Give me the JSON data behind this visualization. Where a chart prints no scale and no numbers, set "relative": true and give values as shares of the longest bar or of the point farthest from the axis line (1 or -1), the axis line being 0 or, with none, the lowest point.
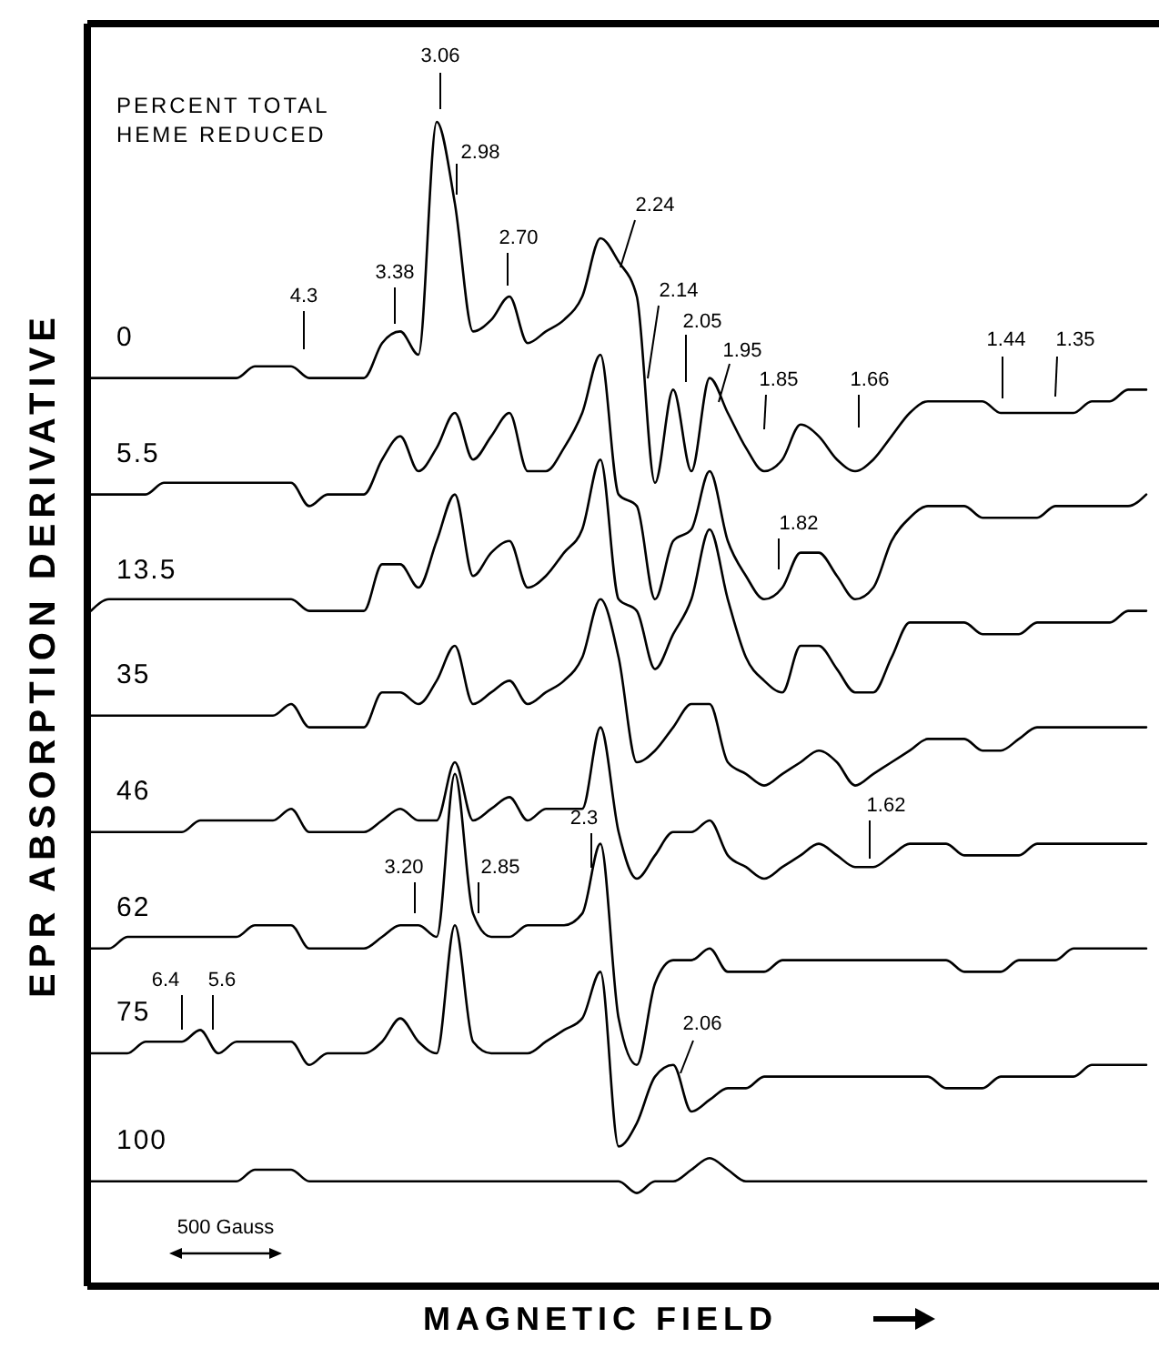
{
  "chart_data": {
    "type": "line",
    "relative": true,
    "xlabel": "MAGNETIC FIELD",
    "ylabel": "EPR ABSORPTION DERIVATIVE",
    "legend_title": "PERCENT TOTAL HEME REDUCED",
    "categories": [
      null,
      null,
      null,
      null,
      null,
      null,
      null,
      null,
      null,
      null,
      null,
      null,
      null,
      null,
      null,
      null,
      null,
      null,
      null,
      null,
      null,
      null,
      null,
      null,
      null,
      null,
      null,
      null,
      null,
      null,
      null,
      null,
      null,
      null,
      null,
      null,
      null,
      null,
      null,
      null,
      null,
      null,
      null,
      null,
      null,
      null,
      null,
      null,
      null,
      null,
      null,
      null,
      null,
      null,
      null,
      null,
      null,
      null,
      null
    ],
    "series": [
      {
        "name": "0",
        "color": "#000000",
        "values": [
          0.78,
          0.78,
          0.78,
          0.78,
          0.78,
          0.78,
          0.78,
          0.78,
          0.78,
          0.79,
          0.79,
          0.79,
          0.78,
          0.78,
          0.78,
          0.78,
          0.81,
          0.82,
          0.8,
          1,
          0.93,
          0.82,
          0.83,
          0.85,
          0.81,
          0.82,
          0.83,
          0.85,
          0.9,
          0.88,
          0.85,
          0.69,
          0.77,
          0.7,
          0.78,
          0.75,
          0.72,
          0.7,
          0.71,
          0.74,
          0.73,
          0.71,
          0.7,
          0.71,
          0.73,
          0.75,
          0.76,
          0.76,
          0.76,
          0.76,
          0.75,
          0.75,
          0.75,
          0.75,
          0.75,
          0.76,
          0.76,
          0.77,
          0.77
        ]
      },
      {
        "name": "5.5",
        "color": "#000000",
        "values": [
          0.68,
          0.68,
          0.68,
          0.68,
          0.69,
          0.69,
          0.69,
          0.69,
          0.69,
          0.69,
          0.69,
          0.69,
          0.67,
          0.68,
          0.68,
          0.68,
          0.71,
          0.73,
          0.7,
          0.72,
          0.75,
          0.71,
          0.73,
          0.75,
          0.7,
          0.7,
          0.72,
          0.75,
          0.8,
          0.68,
          0.67,
          0.59,
          0.64,
          0.65,
          0.7,
          0.64,
          0.61,
          0.59,
          0.6,
          0.63,
          0.63,
          0.61,
          0.59,
          0.6,
          0.64,
          0.66,
          0.67,
          0.67,
          0.67,
          0.66,
          0.66,
          0.66,
          0.66,
          0.67,
          0.67,
          0.67,
          0.67,
          0.67,
          0.68
        ]
      },
      {
        "name": "13.5",
        "color": "#000000",
        "values": [
          0.58,
          0.59,
          0.59,
          0.59,
          0.59,
          0.59,
          0.59,
          0.59,
          0.59,
          0.59,
          0.59,
          0.59,
          0.58,
          0.58,
          0.58,
          0.58,
          0.62,
          0.62,
          0.6,
          0.64,
          0.68,
          0.61,
          0.63,
          0.64,
          0.6,
          0.61,
          0.63,
          0.65,
          0.71,
          0.59,
          0.58,
          0.53,
          0.56,
          0.59,
          0.65,
          0.59,
          0.54,
          0.52,
          0.51,
          0.55,
          0.55,
          0.53,
          0.51,
          0.51,
          0.54,
          0.57,
          0.57,
          0.57,
          0.57,
          0.56,
          0.56,
          0.56,
          0.57,
          0.57,
          0.57,
          0.57,
          0.57,
          0.58,
          0.58
        ]
      },
      {
        "name": "35",
        "color": "#000000",
        "values": [
          0.49,
          0.49,
          0.49,
          0.49,
          0.49,
          0.49,
          0.49,
          0.49,
          0.49,
          0.49,
          0.49,
          0.5,
          0.48,
          0.48,
          0.48,
          0.48,
          0.51,
          0.51,
          0.5,
          0.52,
          0.55,
          0.5,
          0.51,
          0.52,
          0.5,
          0.51,
          0.52,
          0.54,
          0.59,
          0.54,
          0.45,
          0.46,
          0.48,
          0.5,
          0.5,
          0.45,
          0.44,
          0.43,
          0.44,
          0.45,
          0.46,
          0.45,
          0.43,
          0.44,
          0.45,
          0.46,
          0.47,
          0.47,
          0.47,
          0.46,
          0.46,
          0.47,
          0.48,
          0.48,
          0.48,
          0.48,
          0.48,
          0.48,
          0.48
        ]
      },
      {
        "name": "46",
        "color": "#000000",
        "values": [
          0.39,
          0.39,
          0.39,
          0.39,
          0.39,
          0.39,
          0.4,
          0.4,
          0.4,
          0.4,
          0.4,
          0.41,
          0.39,
          0.39,
          0.39,
          0.39,
          0.4,
          0.41,
          0.4,
          0.4,
          0.45,
          0.4,
          0.41,
          0.42,
          0.4,
          0.41,
          0.41,
          0.41,
          0.48,
          0.39,
          0.35,
          0.37,
          0.39,
          0.39,
          0.4,
          0.37,
          0.36,
          0.35,
          0.36,
          0.37,
          0.38,
          0.37,
          0.36,
          0.36,
          0.37,
          0.38,
          0.38,
          0.38,
          0.37,
          0.37,
          0.37,
          0.37,
          0.38,
          0.38,
          0.38,
          0.38,
          0.38,
          0.38,
          0.38
        ]
      },
      {
        "name": "62",
        "color": "#000000",
        "values": [
          0.29,
          0.29,
          0.3,
          0.3,
          0.3,
          0.3,
          0.3,
          0.3,
          0.3,
          0.31,
          0.31,
          0.31,
          0.29,
          0.29,
          0.29,
          0.29,
          0.3,
          0.31,
          0.31,
          0.3,
          0.44,
          0.32,
          0.3,
          0.3,
          0.31,
          0.31,
          0.31,
          0.32,
          0.38,
          0.23,
          0.19,
          0.26,
          0.28,
          0.28,
          0.29,
          0.27,
          0.27,
          0.27,
          0.28,
          0.28,
          0.28,
          0.28,
          0.28,
          0.28,
          0.28,
          0.28,
          0.28,
          0.28,
          0.27,
          0.27,
          0.27,
          0.28,
          0.28,
          0.28,
          0.29,
          0.29,
          0.29,
          0.29,
          0.29
        ]
      },
      {
        "name": "75",
        "color": "#000000",
        "values": [
          0.2,
          0.2,
          0.2,
          0.21,
          0.21,
          0.21,
          0.22,
          0.2,
          0.21,
          0.21,
          0.21,
          0.21,
          0.19,
          0.2,
          0.2,
          0.2,
          0.21,
          0.23,
          0.21,
          0.2,
          0.31,
          0.21,
          0.2,
          0.2,
          0.2,
          0.21,
          0.22,
          0.23,
          0.27,
          0.12,
          0.14,
          0.18,
          0.19,
          0.15,
          0.16,
          0.17,
          0.17,
          0.18,
          0.18,
          0.18,
          0.18,
          0.18,
          0.18,
          0.18,
          0.18,
          0.18,
          0.18,
          0.17,
          0.17,
          0.17,
          0.18,
          0.18,
          0.18,
          0.18,
          0.18,
          0.19,
          0.19,
          0.19,
          0.19
        ]
      },
      {
        "name": "100",
        "color": "#000000",
        "values": [
          0.09,
          0.09,
          0.09,
          0.09,
          0.09,
          0.09,
          0.09,
          0.09,
          0.09,
          0.1,
          0.1,
          0.1,
          0.09,
          0.09,
          0.09,
          0.09,
          0.09,
          0.09,
          0.09,
          0.09,
          0.09,
          0.09,
          0.09,
          0.09,
          0.09,
          0.09,
          0.09,
          0.09,
          0.09,
          0.09,
          0.08,
          0.09,
          0.09,
          0.1,
          0.11,
          0.1,
          0.09,
          0.09,
          0.09,
          0.09,
          0.09,
          0.09,
          0.09,
          0.09,
          0.09,
          0.09,
          0.09,
          0.09,
          0.09,
          0.09,
          0.09,
          0.09,
          0.09,
          0.09,
          0.09,
          0.09,
          0.09,
          0.09,
          0.09
        ]
      }
    ],
    "annotations": [
      "3.06",
      "2.98",
      "2.70",
      "3.38",
      "4.3",
      "2.24",
      "2.14",
      "2.05",
      "1.95",
      "1.85",
      "1.66",
      "1.44",
      "1.35",
      "1.82",
      "1.62",
      "2.3",
      "3.20",
      "2.85",
      "6.4",
      "5.6",
      "2.06",
      "500 Gauss"
    ]
  }
}
